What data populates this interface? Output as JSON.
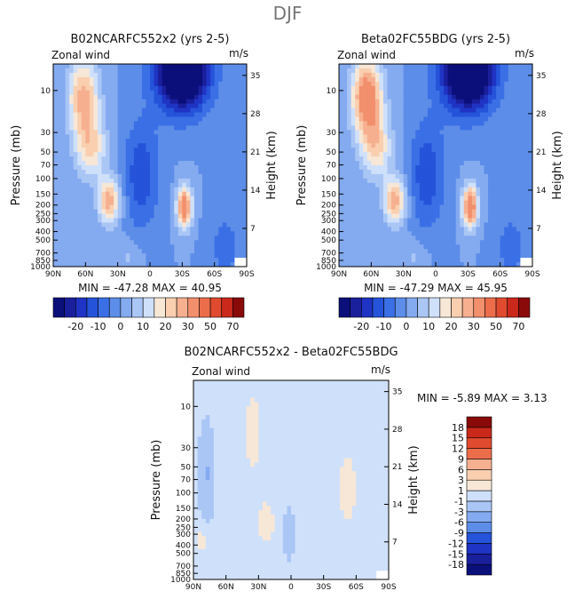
{
  "figure_title": "DJF",
  "colors": {
    "scale": [
      "#0b0f7a",
      "#1a1f9c",
      "#1f34c4",
      "#2553d9",
      "#3a6fe6",
      "#5c8de8",
      "#84aaf0",
      "#aac6f5",
      "#cfe0fa",
      "#f7e7d6",
      "#f9cfb0",
      "#f6b090",
      "#f28f6c",
      "#ec6d4a",
      "#e04a2e",
      "#c9281a",
      "#8a0a0a"
    ],
    "nodata": "#ffffff"
  },
  "chart_data": [
    {
      "type": "heatmap",
      "title": "B02NCARFC552x2 (yrs 2-5)",
      "left_label": "Zonal wind",
      "units": "m/s",
      "xlabel": "",
      "ylabel": "Pressure (mb)",
      "ylabel_right": "Height (km)",
      "x_ticks": [
        "90N",
        "60N",
        "30N",
        "0",
        "30S",
        "60S",
        "90S"
      ],
      "y_ticks": [
        "10",
        "30",
        "50",
        "70",
        "100",
        "150",
        "200",
        "250",
        "300",
        "400",
        "500",
        "700",
        "850",
        "1000"
      ],
      "y2_ticks": [
        "35",
        "28",
        "21",
        "14",
        "7"
      ],
      "stats": "MIN = -47.28   MAX =  40.95",
      "min": -47.28,
      "max": 40.95,
      "colorbar": {
        "levels": [
          -25,
          -20,
          -15,
          -10,
          -5,
          0,
          5,
          10,
          15,
          20,
          25,
          30,
          40,
          50,
          60,
          70
        ],
        "labels": [
          "-20",
          "-10",
          "0",
          "10",
          "20",
          "30",
          "50",
          "70"
        ]
      },
      "features": [
        {
          "lat": 62,
          "p": 12,
          "value": 25
        },
        {
          "lat": 58,
          "p": 40,
          "value": 20
        },
        {
          "lat": 38,
          "p": 150,
          "value": 30
        },
        {
          "lat": -32,
          "p": 200,
          "value": 38
        },
        {
          "lat": -35,
          "p": 10,
          "value": -45
        },
        {
          "lat": 15,
          "p": 120,
          "value": -10
        }
      ]
    },
    {
      "type": "heatmap",
      "title": "Beta02FC55BDG (yrs 2-5)",
      "left_label": "Zonal wind",
      "units": "m/s",
      "xlabel": "",
      "ylabel": "Pressure (mb)",
      "ylabel_right": "Height (km)",
      "x_ticks": [
        "90N",
        "60N",
        "30N",
        "0",
        "30S",
        "60S",
        "90S"
      ],
      "y_ticks": [
        "10",
        "30",
        "50",
        "70",
        "100",
        "150",
        "200",
        "250",
        "300",
        "400",
        "500",
        "700",
        "850",
        "1000"
      ],
      "y2_ticks": [
        "35",
        "28",
        "21",
        "14",
        "7"
      ],
      "stats": "MIN = -47.29   MAX =  45.95",
      "min": -47.29,
      "max": 45.95,
      "colorbar": {
        "levels": [
          -25,
          -20,
          -15,
          -10,
          -5,
          0,
          5,
          10,
          15,
          20,
          25,
          30,
          40,
          50,
          60,
          70
        ],
        "labels": [
          "-20",
          "-10",
          "0",
          "10",
          "20",
          "30",
          "50",
          "70"
        ]
      },
      "features": [
        {
          "lat": 64,
          "p": 12,
          "value": 35
        },
        {
          "lat": 58,
          "p": 40,
          "value": 22
        },
        {
          "lat": 40,
          "p": 170,
          "value": 30
        },
        {
          "lat": -33,
          "p": 200,
          "value": 38
        },
        {
          "lat": -35,
          "p": 10,
          "value": -46
        },
        {
          "lat": 15,
          "p": 120,
          "value": -10
        }
      ]
    },
    {
      "type": "heatmap",
      "title": "B02NCARFC552x2 - Beta02FC55BDG",
      "left_label": "Zonal wind",
      "units": "m/s",
      "xlabel": "",
      "ylabel": "Pressure (mb)",
      "ylabel_right": "Height (km)",
      "x_ticks": [
        "90N",
        "60N",
        "30N",
        "0",
        "30S",
        "60S",
        "90S"
      ],
      "y_ticks": [
        "10",
        "30",
        "50",
        "70",
        "100",
        "150",
        "200",
        "250",
        "300",
        "400",
        "500",
        "700",
        "850",
        "1000"
      ],
      "y2_ticks": [
        "35",
        "28",
        "21",
        "14",
        "7"
      ],
      "stats": "MIN =  -5.89   MAX =   3.13",
      "min": -5.89,
      "max": 3.13,
      "colorbar": {
        "levels": [
          -18,
          -15,
          -12,
          -9,
          -6,
          -3,
          -1,
          1,
          3,
          6,
          9,
          12,
          15,
          18
        ],
        "labels": [
          "18",
          "15",
          "12",
          "9",
          "6",
          "3",
          "1",
          "-1",
          "-3",
          "-6",
          "-9",
          "-12",
          "-15",
          "-18"
        ]
      },
      "features": [
        {
          "lat": 78,
          "p": 50,
          "value": -3
        },
        {
          "lat": 35,
          "p": 20,
          "value": 2
        },
        {
          "lat": 25,
          "p": 200,
          "value": 2
        },
        {
          "lat": -50,
          "p": 100,
          "value": 3
        },
        {
          "lat": 80,
          "p": 350,
          "value": 2
        }
      ]
    }
  ]
}
